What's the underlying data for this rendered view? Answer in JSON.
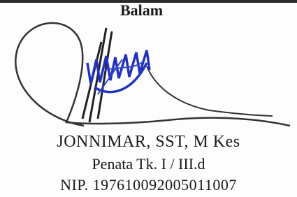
{
  "document": {
    "heading": "Balam",
    "signatory": {
      "name": "JONNIMAR, SST, M Kes",
      "rank": "Penata Tk. I / III.d",
      "nip": "NIP. 197610092005011007"
    }
  }
}
